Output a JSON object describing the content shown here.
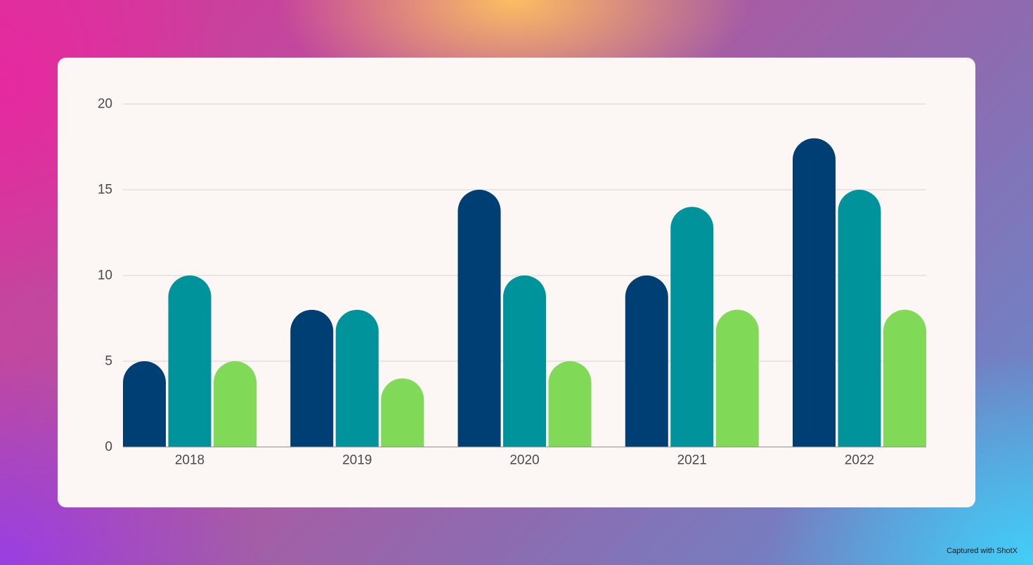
{
  "chart_data": {
    "type": "bar",
    "categories": [
      "2018",
      "2019",
      "2020",
      "2021",
      "2022"
    ],
    "series": [
      {
        "values": [
          5,
          8,
          15,
          10,
          18
        ],
        "color": "#003f74"
      },
      {
        "values": [
          10,
          8,
          10,
          14,
          15
        ],
        "color": "#00939b"
      },
      {
        "values": [
          5,
          4,
          5,
          8,
          8
        ],
        "color": "#80d957"
      }
    ],
    "ylim": [
      0,
      20
    ],
    "yticks": [
      0,
      5,
      10,
      15,
      20
    ],
    "grid": true
  },
  "watermark": "Captured with ShotX"
}
